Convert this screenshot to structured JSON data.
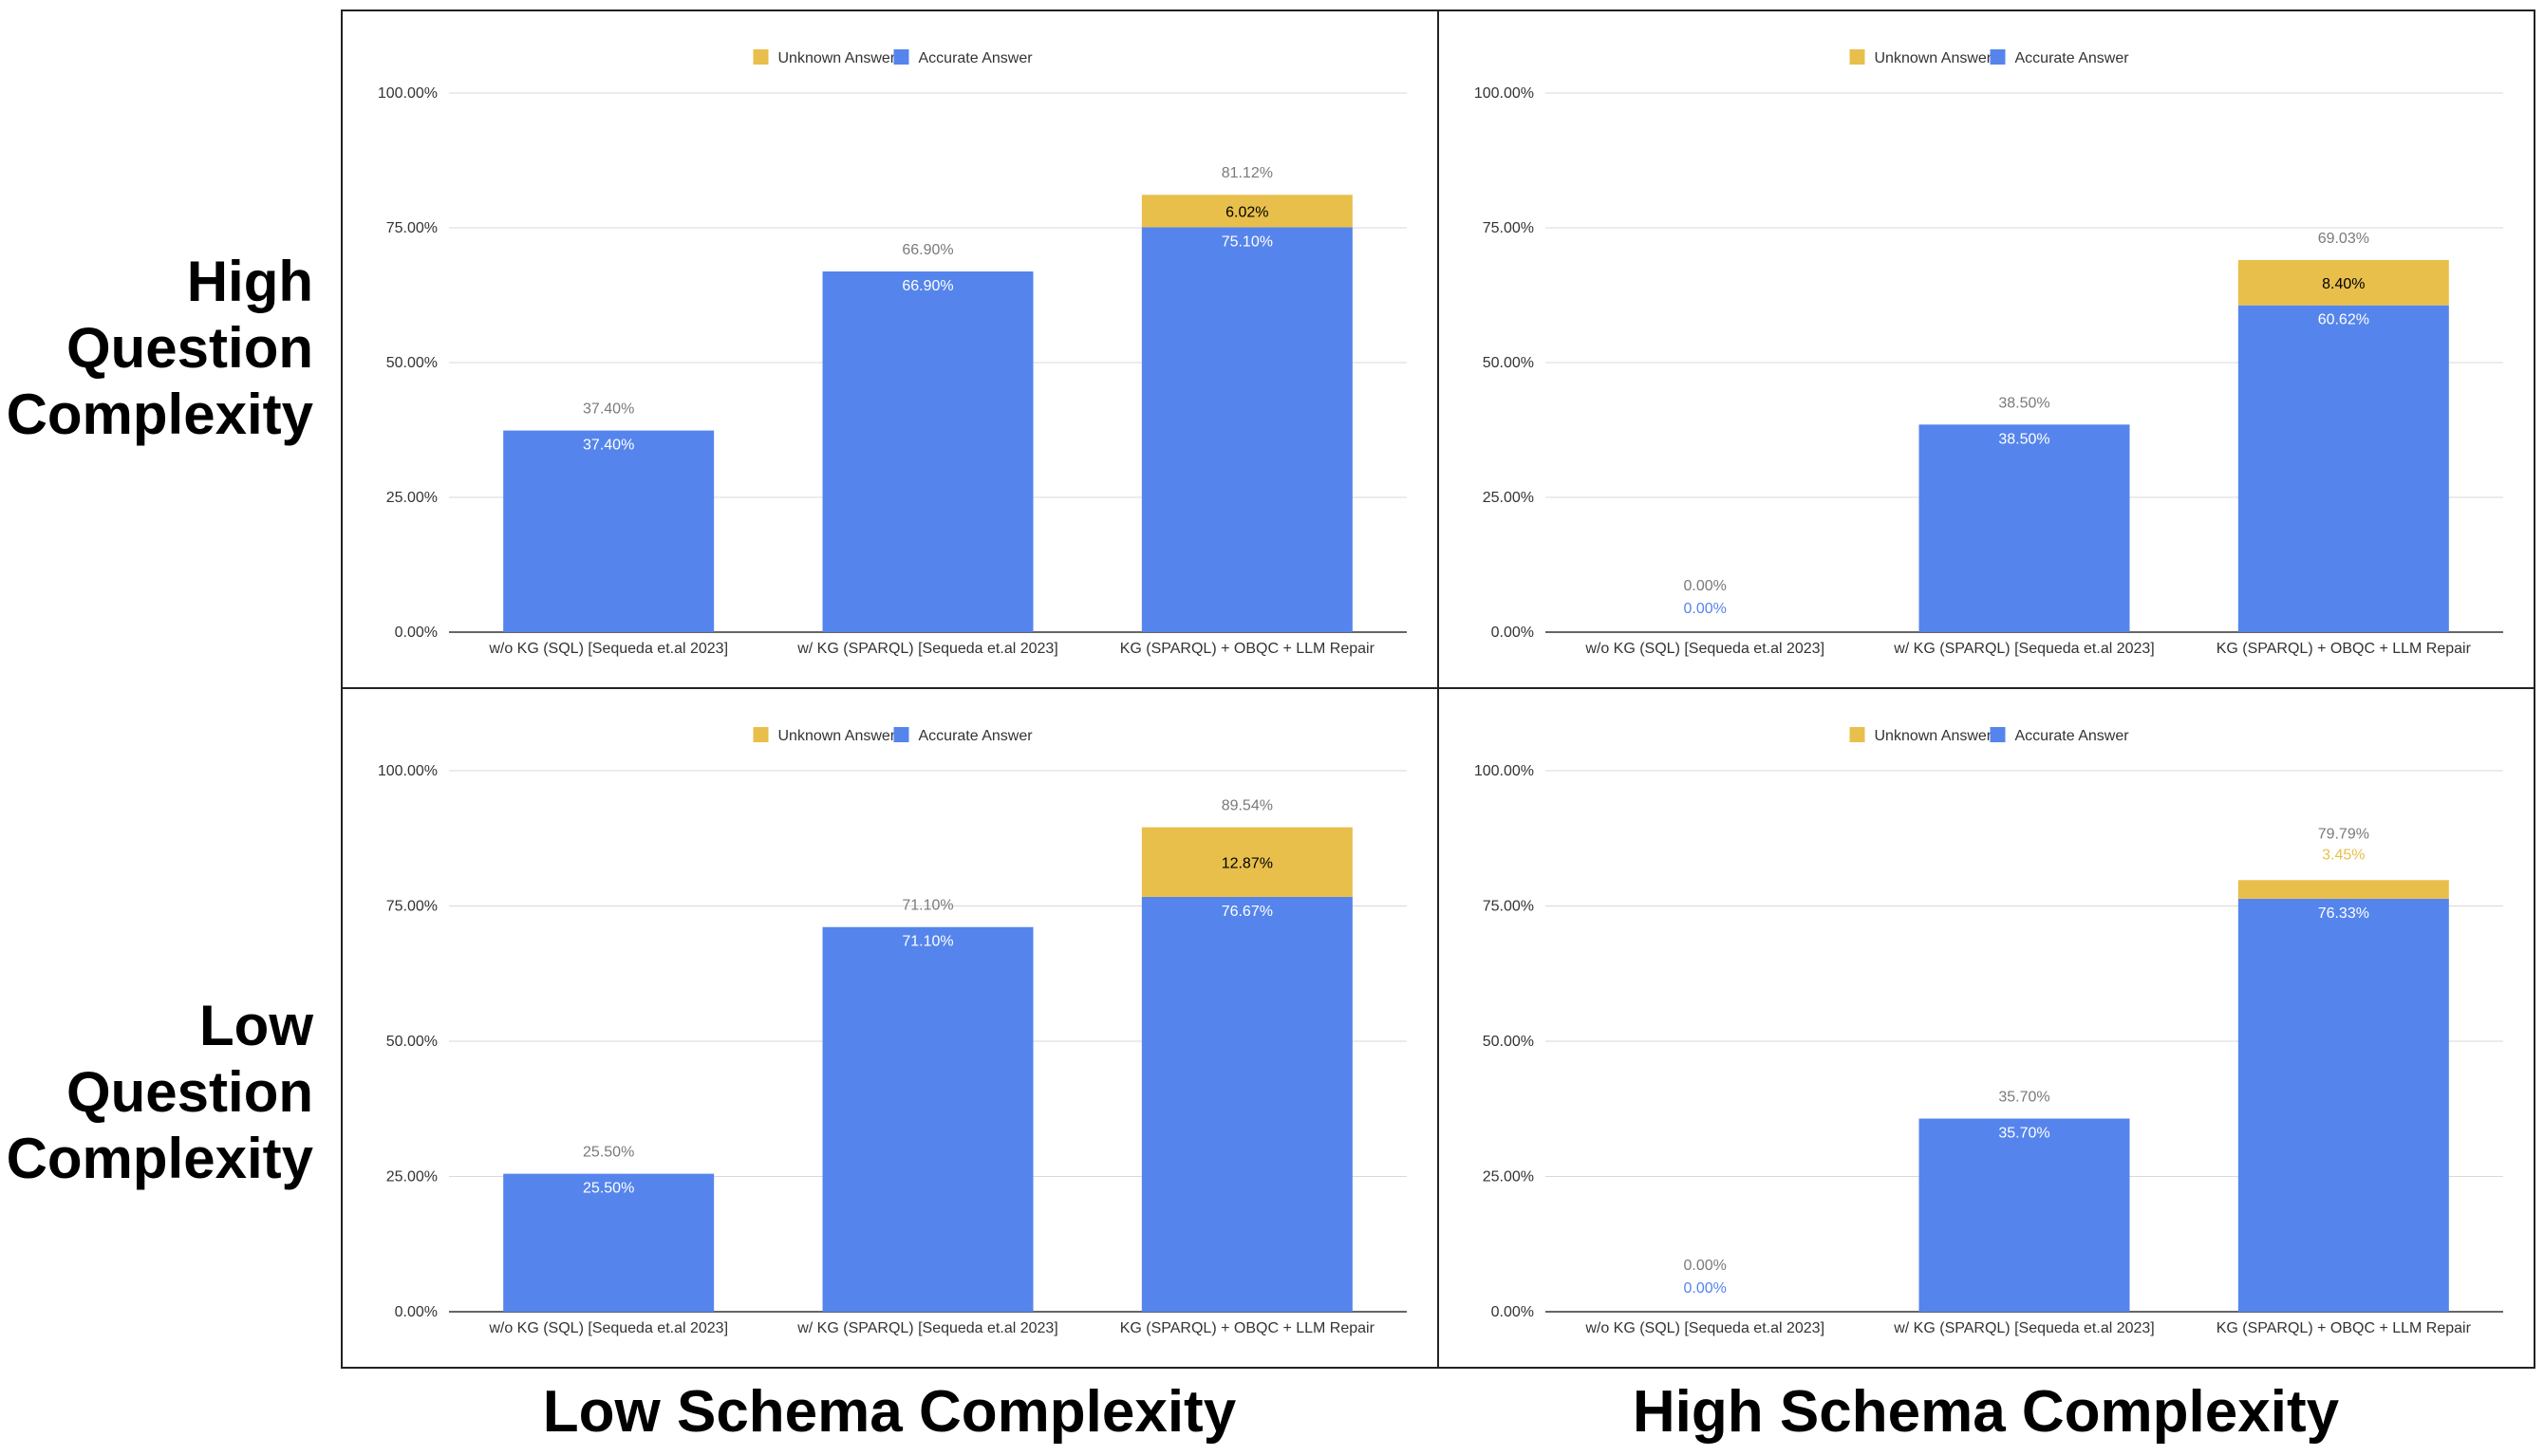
{
  "row_labels": [
    {
      "lines": [
        "High",
        "Question",
        "Complexity"
      ]
    },
    {
      "lines": [
        "Low",
        "Question",
        "Complexity"
      ]
    }
  ],
  "col_labels": [
    "Low Schema Complexity",
    "High Schema Complexity"
  ],
  "colors": {
    "accurate": "#5585ec",
    "unknown": "#e8bf4b",
    "grid": "#d9d9d9",
    "axis": "#333333",
    "total_label": "#7a7a7a",
    "unknown_label_outside": "#e8bf4b",
    "accurate_label_zero": "#5585ec"
  },
  "chart_data": [
    {
      "type": "bar",
      "stacked": true,
      "panel": "high-question-low-schema",
      "legend": [
        "Unknown Answer",
        "Accurate Answer"
      ],
      "categories": [
        "w/o KG (SQL) [Sequeda et.al 2023]",
        "w/ KG (SPARQL) [Sequeda et.al 2023]",
        "KG (SPARQL) + OBQC + LLM Repair"
      ],
      "series": [
        {
          "name": "Accurate Answer",
          "values": [
            37.4,
            66.9,
            75.1
          ],
          "labels": [
            "37.40%",
            "66.90%",
            "75.10%"
          ]
        },
        {
          "name": "Unknown Answer",
          "values": [
            0,
            0,
            6.02
          ],
          "labels": [
            "",
            "",
            "6.02%"
          ]
        }
      ],
      "totals": [
        "37.40%",
        "66.90%",
        "81.12%"
      ],
      "ylim": [
        0,
        100
      ],
      "yticks": [
        "0.00%",
        "25.00%",
        "50.00%",
        "75.00%",
        "100.00%"
      ],
      "grid": true,
      "legend_position": "top-center"
    },
    {
      "type": "bar",
      "stacked": true,
      "panel": "high-question-high-schema",
      "legend": [
        "Unknown Answer",
        "Accurate Answer"
      ],
      "categories": [
        "w/o KG (SQL) [Sequeda et.al 2023]",
        "w/ KG (SPARQL) [Sequeda et.al 2023]",
        "KG (SPARQL) + OBQC + LLM Repair"
      ],
      "series": [
        {
          "name": "Accurate Answer",
          "values": [
            0,
            38.5,
            60.62
          ],
          "labels": [
            "0.00%",
            "38.50%",
            "60.62%"
          ]
        },
        {
          "name": "Unknown Answer",
          "values": [
            0,
            0,
            8.4
          ],
          "labels": [
            "",
            "",
            "8.40%"
          ]
        }
      ],
      "totals": [
        "0.00%",
        "38.50%",
        "69.03%"
      ],
      "ylim": [
        0,
        100
      ],
      "yticks": [
        "0.00%",
        "25.00%",
        "50.00%",
        "75.00%",
        "100.00%"
      ],
      "grid": true,
      "legend_position": "top-center"
    },
    {
      "type": "bar",
      "stacked": true,
      "panel": "low-question-low-schema",
      "legend": [
        "Unknown Answer",
        "Accurate Answer"
      ],
      "categories": [
        "w/o KG (SQL) [Sequeda et.al 2023]",
        "w/ KG (SPARQL) [Sequeda et.al 2023]",
        "KG (SPARQL) + OBQC + LLM Repair"
      ],
      "series": [
        {
          "name": "Accurate Answer",
          "values": [
            25.5,
            71.1,
            76.67
          ],
          "labels": [
            "25.50%",
            "71.10%",
            "76.67%"
          ]
        },
        {
          "name": "Unknown Answer",
          "values": [
            0,
            0,
            12.87
          ],
          "labels": [
            "",
            "",
            "12.87%"
          ]
        }
      ],
      "totals": [
        "25.50%",
        "71.10%",
        "89.54%"
      ],
      "ylim": [
        0,
        100
      ],
      "yticks": [
        "0.00%",
        "25.00%",
        "50.00%",
        "75.00%",
        "100.00%"
      ],
      "grid": true,
      "legend_position": "top-center"
    },
    {
      "type": "bar",
      "stacked": true,
      "panel": "low-question-high-schema",
      "legend": [
        "Unknown Answer",
        "Accurate Answer"
      ],
      "categories": [
        "w/o KG (SQL) [Sequeda et.al 2023]",
        "w/ KG (SPARQL) [Sequeda et.al 2023]",
        "KG (SPARQL) + OBQC + LLM Repair"
      ],
      "series": [
        {
          "name": "Accurate Answer",
          "values": [
            0,
            35.7,
            76.33
          ],
          "labels": [
            "0.00%",
            "35.70%",
            "76.33%"
          ]
        },
        {
          "name": "Unknown Answer",
          "values": [
            0,
            0,
            3.45
          ],
          "labels": [
            "",
            "",
            "3.45%"
          ]
        }
      ],
      "totals": [
        "0.00%",
        "35.70%",
        "79.79%"
      ],
      "ylim": [
        0,
        100
      ],
      "yticks": [
        "0.00%",
        "25.00%",
        "50.00%",
        "75.00%",
        "100.00%"
      ],
      "grid": true,
      "legend_position": "top-center"
    }
  ]
}
